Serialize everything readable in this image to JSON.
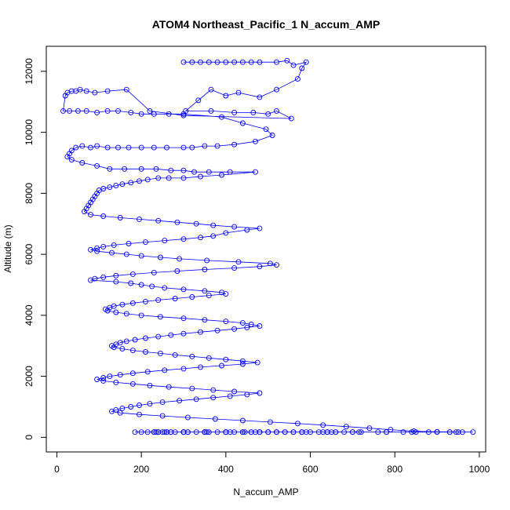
{
  "chart_data": {
    "type": "line",
    "title": "ATOM4 Northeast_Pacific_1 N_accum_AMP",
    "xlabel": "N_accum_AMP",
    "ylabel": "Altitude (m)",
    "xlim": [
      -25,
      1015
    ],
    "ylim": [
      -480,
      12820
    ],
    "x_ticks": [
      0,
      200,
      400,
      600,
      800,
      1000
    ],
    "y_ticks": [
      0,
      2000,
      4000,
      6000,
      8000,
      10000,
      12000
    ],
    "x_tick_labels": [
      "0",
      "200",
      "400",
      "600",
      "800",
      "1000"
    ],
    "y_tick_labels": [
      "0",
      "2000",
      "4000",
      "6000",
      "8000",
      "10000",
      "12000"
    ],
    "grid": false,
    "marker": "open-circle",
    "colors": {
      "series": "#0000ff",
      "axes": "#000000"
    },
    "series": [
      {
        "x": [
          300,
          320,
          340,
          360,
          380,
          400,
          420,
          440,
          460,
          480,
          520,
          545,
          560,
          590,
          580,
          570,
          520,
          480,
          430,
          400,
          365,
          335,
          305,
          365,
          420,
          465,
          500,
          520,
          555,
          300,
          220,
          165,
          120,
          90,
          70,
          55,
          45,
          35,
          25,
          20,
          15,
          30,
          50,
          70,
          95,
          120,
          145,
          175,
          200,
          230,
          265,
          300,
          390,
          440,
          495,
          510,
          470,
          420,
          380,
          350,
          320,
          300,
          260,
          230,
          200,
          170,
          145,
          120,
          95,
          80,
          60,
          45,
          35,
          30,
          25,
          35,
          60,
          95,
          125,
          160,
          200,
          235,
          270,
          300,
          325,
          360,
          410,
          470,
          390,
          340,
          300,
          265,
          240,
          215,
          195,
          175,
          155,
          140,
          125,
          110,
          100,
          95,
          90,
          85,
          80,
          75,
          70,
          65,
          80,
          110,
          150,
          195,
          240,
          285,
          330,
          370,
          420,
          480,
          450,
          400,
          370,
          340,
          300,
          255,
          210,
          170,
          135,
          110,
          95,
          80,
          95,
          130,
          165,
          200,
          245,
          290,
          355,
          430,
          505,
          520,
          480,
          420,
          350,
          285,
          230,
          180,
          140,
          110,
          90,
          80,
          140,
          175,
          200,
          225,
          255,
          300,
          350,
          390,
          400,
          360,
          320,
          280,
          240,
          210,
          180,
          155,
          135,
          125,
          115,
          120,
          140,
          165,
          200,
          245,
          300,
          350,
          400,
          440,
          460,
          480,
          450,
          420,
          380,
          340,
          300,
          270,
          240,
          210,
          185,
          165,
          150,
          140,
          130,
          135,
          155,
          180,
          210,
          245,
          280,
          320,
          360,
          400,
          440,
          475,
          440,
          390,
          340,
          300,
          255,
          215,
          180,
          150,
          125,
          110,
          95,
          110,
          140,
          180,
          220,
          265,
          320,
          370,
          420,
          480,
          450,
          410,
          370,
          330,
          290,
          250,
          220,
          195,
          175,
          155,
          140,
          130,
          150,
          195,
          250,
          310,
          375,
          440,
          505,
          570,
          630,
          685,
          740,
          790,
          845,
          900,
          950,
          985,
          960,
          930,
          880,
          820,
          760,
          700,
          640,
          580,
          520,
          460,
          400,
          350,
          300,
          255,
          215,
          185,
          200,
          230,
          270,
          310,
          355,
          400,
          440,
          480,
          500,
          540,
          590,
          650,
          715,
          780,
          850,
          930,
          945,
          900,
          840,
          780,
          720,
          660,
          600,
          540,
          480,
          420,
          360,
          310,
          270,
          240,
          230,
          260,
          300,
          350,
          400,
          445,
          500,
          560,
          630,
          680,
          700,
          640,
          580,
          520,
          460,
          400,
          350,
          300,
          250,
          230,
          235,
          260,
          300,
          350,
          410,
          470,
          520,
          580,
          640,
          660,
          620,
          560,
          500,
          440,
          380,
          330,
          280,
          240,
          260,
          300,
          350,
          400,
          440,
          480,
          510,
          560,
          610,
          660
        ]
      }
    ],
    "y": [
      12300,
      12300,
      12300,
      12300,
      12300,
      12300,
      12300,
      12300,
      12300,
      12300,
      12300,
      12350,
      12200,
      12300,
      12100,
      11750,
      11400,
      11150,
      11300,
      11200,
      11400,
      11050,
      10700,
      10700,
      10650,
      10650,
      10600,
      10700,
      10450,
      10550,
      10700,
      11400,
      11350,
      11300,
      11350,
      11400,
      11350,
      11350,
      11300,
      11200,
      10700,
      10700,
      10700,
      10700,
      10650,
      10700,
      10700,
      10650,
      10600,
      10600,
      10600,
      10600,
      10500,
      10300,
      10100,
      9900,
      9700,
      9600,
      9550,
      9550,
      9500,
      9500,
      9500,
      9500,
      9500,
      9500,
      9500,
      9500,
      9550,
      9500,
      9550,
      9500,
      9400,
      9300,
      9200,
      9100,
      9000,
      8900,
      8800,
      8800,
      8800,
      8800,
      8750,
      8750,
      8700,
      8700,
      8700,
      8700,
      8600,
      8550,
      8500,
      8500,
      8500,
      8450,
      8400,
      8350,
      8300,
      8250,
      8200,
      8150,
      8100,
      8000,
      7900,
      7800,
      7700,
      7600,
      7500,
      7400,
      7300,
      7250,
      7200,
      7150,
      7100,
      7050,
      7000,
      6950,
      6900,
      6850,
      6800,
      6700,
      6600,
      6550,
      6500,
      6450,
      6400,
      6350,
      6300,
      6250,
      6200,
      6150,
      6100,
      6050,
      6000,
      5950,
      5900,
      5850,
      5800,
      5750,
      5700,
      5650,
      5600,
      5550,
      5500,
      5450,
      5400,
      5350,
      5300,
      5250,
      5200,
      5150,
      5100,
      5050,
      5000,
      4950,
      4900,
      4850,
      4800,
      4750,
      4700,
      4650,
      4600,
      4550,
      4500,
      4450,
      4400,
      4350,
      4300,
      4250,
      4200,
      4150,
      4100,
      4050,
      4000,
      3950,
      3900,
      3850,
      3800,
      3750,
      3700,
      3650,
      3600,
      3550,
      3500,
      3450,
      3400,
      3350,
      3300,
      3250,
      3200,
      3150,
      3100,
      3050,
      3000,
      2950,
      2900,
      2850,
      2800,
      2750,
      2700,
      2650,
      2600,
      2550,
      2500,
      2450,
      2400,
      2350,
      2300,
      2250,
      2200,
      2150,
      2100,
      2050,
      2000,
      1950,
      1900,
      1850,
      1800,
      1750,
      1700,
      1650,
      1600,
      1550,
      1500,
      1450,
      1400,
      1350,
      1300,
      1250,
      1200,
      1150,
      1100,
      1050,
      1000,
      950,
      900,
      850,
      800,
      750,
      700,
      650,
      600,
      550,
      500,
      450,
      400,
      350,
      300,
      250,
      200,
      180,
      170,
      170,
      170,
      170,
      170,
      170,
      170,
      170,
      170,
      170,
      170,
      170,
      170,
      170,
      170,
      170,
      170,
      170,
      170,
      170,
      170,
      170,
      170,
      170,
      170,
      170,
      170,
      170,
      170,
      170,
      170,
      170,
      170,
      170,
      170,
      170,
      170,
      170,
      170,
      170,
      170,
      170,
      170,
      170,
      170,
      170,
      170,
      170,
      170,
      170,
      170,
      170,
      170,
      170,
      170,
      170,
      170,
      170,
      170,
      170,
      170,
      170,
      170,
      170,
      170,
      170,
      170,
      170,
      170,
      170,
      170,
      170,
      170,
      170,
      170,
      170,
      170,
      170,
      170,
      170,
      170,
      170,
      170,
      170,
      170,
      170,
      170,
      170,
      170,
      170,
      170,
      170
    ]
  }
}
